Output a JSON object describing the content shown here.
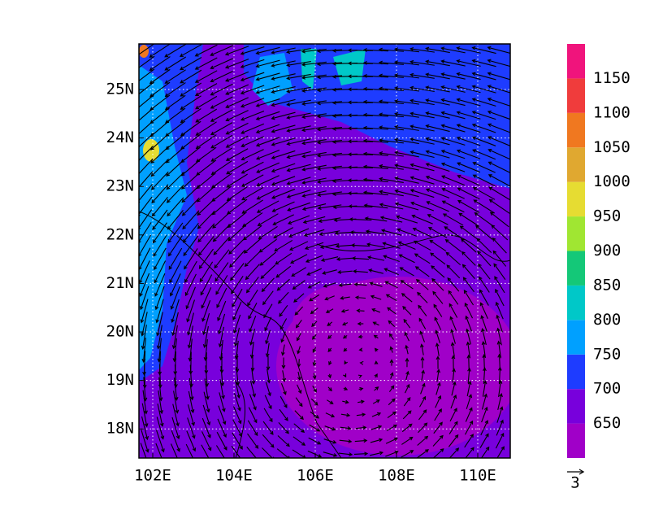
{
  "map": {
    "lon_range": [
      101.66,
      110.8
    ],
    "lat_range": [
      17.4,
      25.94
    ],
    "lon_labels": [
      {
        "value": 102,
        "label": "102E"
      },
      {
        "value": 104,
        "label": "104E"
      },
      {
        "value": 106,
        "label": "106E"
      },
      {
        "value": 108,
        "label": "108E"
      },
      {
        "value": 110,
        "label": "110E"
      }
    ],
    "lat_labels": [
      {
        "value": 18,
        "label": "18N"
      },
      {
        "value": 19,
        "label": "19N"
      },
      {
        "value": 20,
        "label": "20N"
      },
      {
        "value": 21,
        "label": "21N"
      },
      {
        "value": 22,
        "label": "22N"
      },
      {
        "value": 23,
        "label": "23N"
      },
      {
        "value": 24,
        "label": "24N"
      },
      {
        "value": 25,
        "label": "25N"
      }
    ]
  },
  "colorbar": {
    "levels": [
      650,
      700,
      750,
      800,
      850,
      900,
      950,
      1000,
      1050,
      1100,
      1150
    ],
    "colors": [
      "#a000c8",
      "#7800dc",
      "#1e3cff",
      "#00a0ff",
      "#00c8c8",
      "#14c878",
      "#a0e632",
      "#e6dc32",
      "#e0a830",
      "#f07820",
      "#f03c3c",
      "#f0147c"
    ]
  },
  "vector_reference": {
    "label": "3"
  }
}
